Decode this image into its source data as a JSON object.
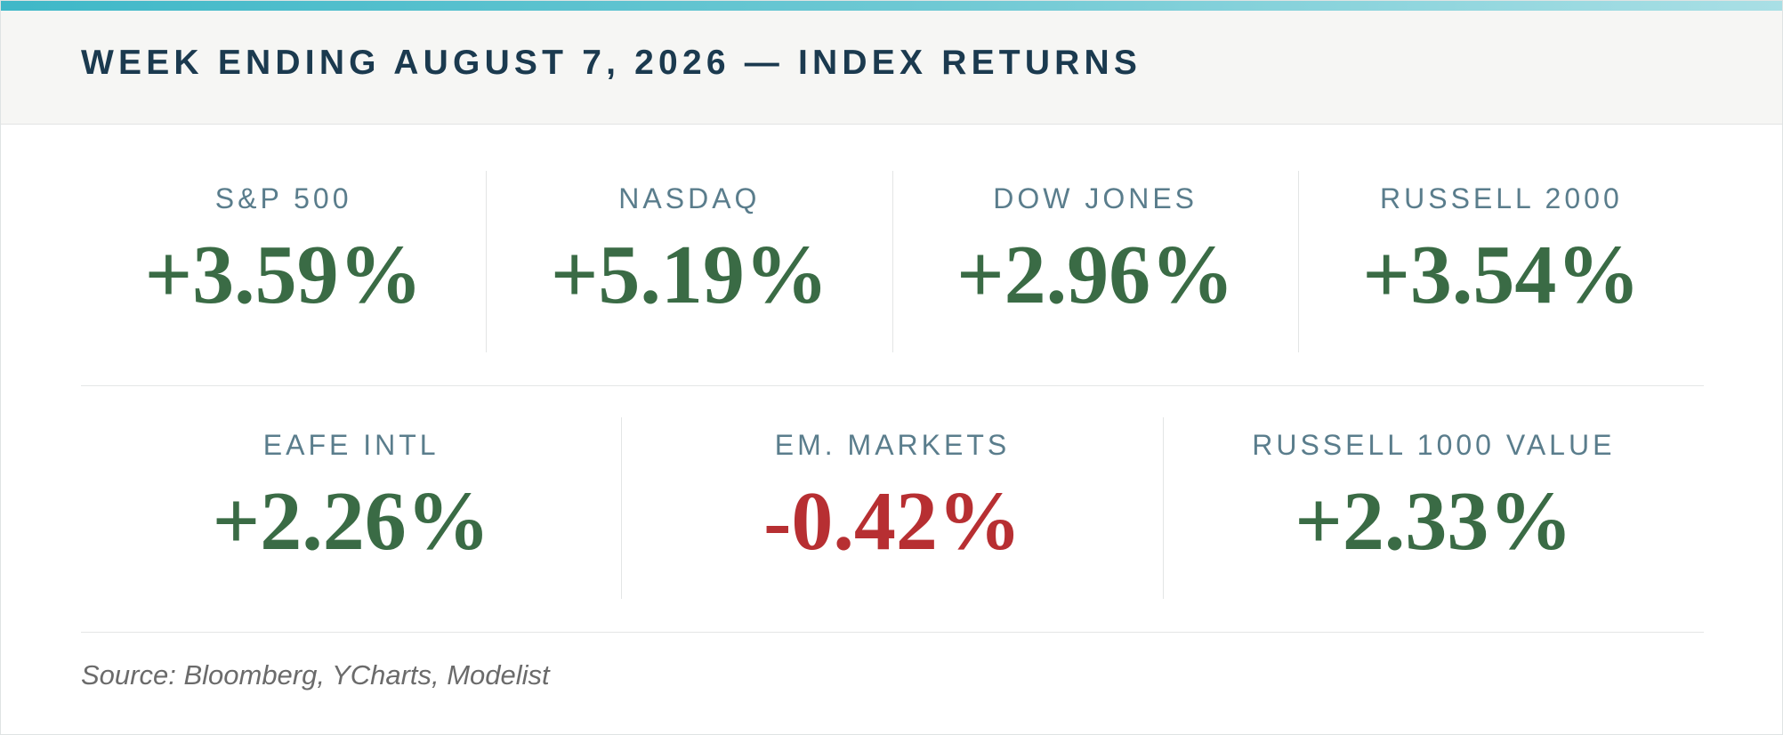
{
  "header": {
    "title": "WEEK ENDING AUGUST 7, 2026 — INDEX RETURNS"
  },
  "colors": {
    "positive": "#3a6b45",
    "negative": "#b72f32",
    "label": "#5a7d8c",
    "title": "#1b3a4f",
    "accent": "#3fb8c8"
  },
  "indices_row1": [
    {
      "name": "S&P 500",
      "return": "+3.59%",
      "direction": "positive"
    },
    {
      "name": "NASDAQ",
      "return": "+5.19%",
      "direction": "positive"
    },
    {
      "name": "DOW JONES",
      "return": "+2.96%",
      "direction": "positive"
    },
    {
      "name": "RUSSELL 2000",
      "return": "+3.54%",
      "direction": "positive"
    }
  ],
  "indices_row2": [
    {
      "name": "EAFE INTL",
      "return": "+2.26%",
      "direction": "positive"
    },
    {
      "name": "EM. MARKETS",
      "return": "-0.42%",
      "direction": "negative"
    },
    {
      "name": "RUSSELL 1000 VALUE",
      "return": "+2.33%",
      "direction": "positive"
    }
  ],
  "footer": {
    "source": "Source: Bloomberg, YCharts, Modelist"
  }
}
